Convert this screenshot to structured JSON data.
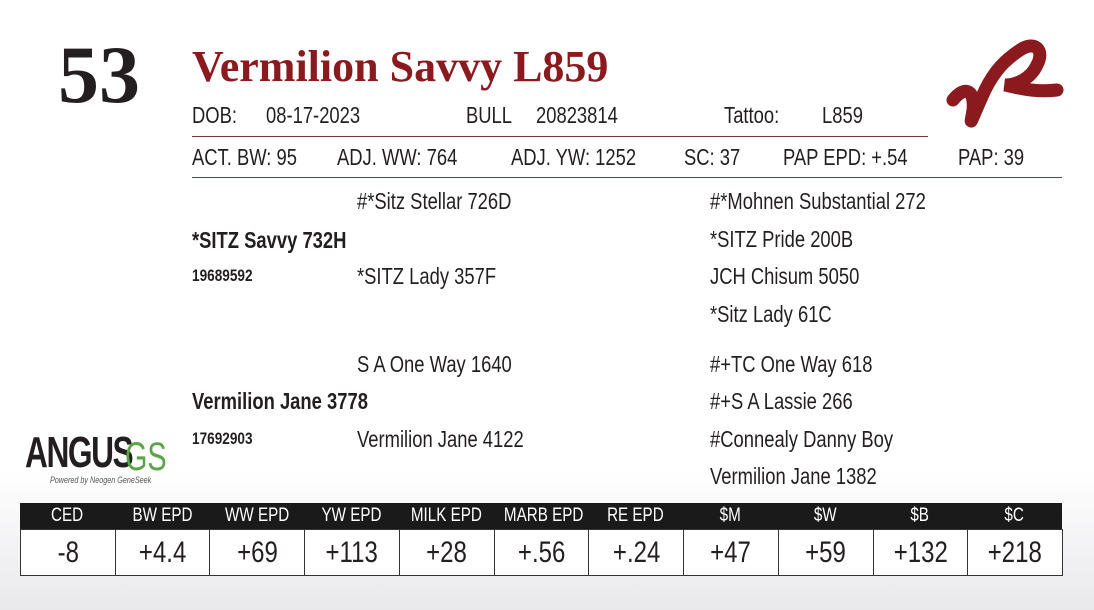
{
  "lot": "53",
  "name": "Vermilion Savvy L859",
  "info": {
    "dob_label": "DOB:",
    "dob": "08-17-2023",
    "sex": "BULL",
    "reg": "20823814",
    "tattoo_label": "Tattoo:",
    "tattoo": "L859"
  },
  "stats": [
    "ACT. BW: 95",
    "ADJ. WW: 764",
    "ADJ. YW: 1252",
    "SC: 37",
    "PAP EPD: +.54",
    "PAP: 39"
  ],
  "sire": {
    "name": "*SITZ Savvy 732H",
    "reg": "19689592",
    "sire": "#*Sitz Stellar 726D",
    "dam": "*SITZ Lady 357F",
    "sire_sire": "#*Mohnen Substantial 272",
    "sire_dam": "*SITZ Pride 200B",
    "dam_sire": "JCH Chisum 5050",
    "dam_dam": "*Sitz Lady 61C"
  },
  "dam": {
    "name": "Vermilion Jane 3778",
    "reg": "17692903",
    "sire": "S A One Way 1640",
    "dam": "Vermilion Jane 4122",
    "sire_sire": "#+TC One Way 618",
    "sire_dam": "#+S A Lassie 266",
    "dam_sire": "#Connealy Danny Boy",
    "dam_dam": "Vermilion Jane 1382"
  },
  "logo": {
    "angus": "ANGUS",
    "gs": "GS",
    "tagline": "Powered by Neogen GeneSeek"
  },
  "epd": {
    "headers": [
      "CED",
      "BW EPD",
      "WW EPD",
      "YW EPD",
      "MILK EPD",
      "MARB EPD",
      "RE EPD",
      "$M",
      "$W",
      "$B",
      "$C"
    ],
    "values": [
      "-8",
      "+4.4",
      "+69",
      "+113",
      "+28",
      "+.56",
      "+.24",
      "+47",
      "+59",
      "+132",
      "+218"
    ]
  }
}
